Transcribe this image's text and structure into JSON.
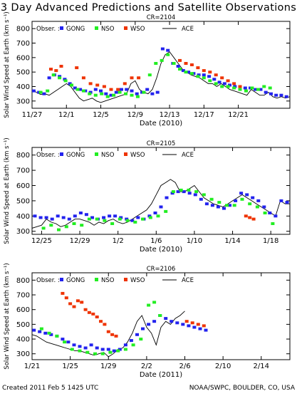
{
  "title": "3 Day Advanced Predictions and Satellite Observations",
  "footer": {
    "left": "Created 2011 Feb 5 1425 UTC",
    "right": "NOAA/SWPC, BOULDER, CO, USA"
  },
  "colors": {
    "GONG": "#2222ee",
    "NSO": "#22ee22",
    "WSO": "#ee3300",
    "ACE": "#000000"
  },
  "chart_data": [
    {
      "type": "line",
      "title": "CR=2104",
      "xlabel": "Date (2010)",
      "ylabel": "Solar Wind Speed at Earth (km s⁻¹)",
      "ylim": [
        250,
        850
      ],
      "yticks": [
        300,
        400,
        500,
        600,
        700,
        800
      ],
      "xlim": [
        0,
        30
      ],
      "xticks": [
        0,
        4,
        8,
        12,
        16,
        20,
        24
      ],
      "xticklabels": [
        "11/27",
        "12/1",
        "12/5",
        "12/9",
        "12/13",
        "12/17",
        "12/21"
      ],
      "legend": {
        "prefix": "Obser. :",
        "labels": {
          "GONG": "GONG",
          "NSO": "NSO",
          "WSO": "WSO",
          "ACE": "ACE"
        }
      },
      "series": [
        {
          "name": "ACE",
          "x": [
            0,
            0.5,
            1,
            1.5,
            2,
            2.5,
            3,
            3.5,
            4,
            4.5,
            5,
            5.5,
            6,
            6.5,
            7,
            7.5,
            8,
            8.5,
            9,
            9.5,
            10,
            10.5,
            11,
            11.5,
            12,
            12.5,
            13,
            13.5,
            14,
            14.5,
            15,
            15.5,
            16,
            16.5,
            17,
            17.5,
            18,
            18.5,
            19,
            19.5,
            20,
            20.5,
            21,
            21.5,
            22,
            22.5,
            23,
            23.5,
            24,
            24.5,
            25,
            25.5,
            26,
            26.5,
            27,
            27.5,
            28,
            28.5,
            29,
            29.5,
            30
          ],
          "y": [
            380,
            360,
            345,
            350,
            340,
            360,
            380,
            400,
            420,
            400,
            360,
            320,
            300,
            310,
            320,
            300,
            290,
            300,
            310,
            320,
            330,
            340,
            350,
            420,
            440,
            380,
            360,
            350,
            380,
            460,
            560,
            620,
            640,
            600,
            560,
            520,
            500,
            480,
            470,
            460,
            440,
            420,
            420,
            400,
            420,
            400,
            380,
            370,
            360,
            350,
            340,
            380,
            360,
            340,
            340,
            360,
            330,
            320,
            330,
            320,
            330
          ]
        },
        {
          "name": "GONG",
          "x": [
            0.2,
            0.8,
            1.4,
            2.0,
            2.6,
            3.2,
            3.8,
            4.4,
            5.0,
            5.6,
            6.2,
            6.8,
            7.4,
            8.0,
            8.6,
            9.2,
            9.8,
            10.4,
            11.0,
            11.6,
            12.2,
            12.8,
            13.4,
            14.0,
            14.6,
            15.2,
            15.8,
            16.4,
            17.0,
            17.6,
            18.2,
            18.8,
            19.4,
            20.0,
            20.6,
            21.2,
            21.8,
            22.4,
            23.0,
            23.6,
            24.2,
            24.8,
            25.4,
            26.0,
            26.6,
            27.2,
            27.8,
            28.4,
            29.0,
            29.6
          ],
          "y": [
            370,
            360,
            350,
            460,
            480,
            470,
            450,
            420,
            390,
            380,
            370,
            360,
            380,
            370,
            350,
            340,
            360,
            380,
            380,
            370,
            350,
            360,
            380,
            350,
            360,
            660,
            650,
            560,
            540,
            510,
            500,
            490,
            480,
            480,
            470,
            450,
            430,
            420,
            410,
            400,
            400,
            390,
            390,
            380,
            380,
            360,
            350,
            340,
            340,
            330
          ]
        },
        {
          "name": "NSO",
          "x": [
            1.0,
            1.8,
            2.5,
            3.2,
            3.9,
            4.6,
            5.3,
            6.0,
            6.7,
            7.4,
            8.1,
            8.8,
            9.5,
            10.2,
            10.9,
            11.6,
            12.3,
            13.0,
            13.7,
            14.4,
            15.1,
            15.8,
            16.5,
            17.2,
            17.9,
            18.6,
            19.3,
            20.0,
            20.7,
            21.4,
            22.1,
            22.8,
            23.5,
            24.2,
            24.9,
            25.6,
            26.3,
            27.0,
            27.7
          ],
          "y": [
            360,
            370,
            480,
            460,
            440,
            410,
            380,
            370,
            350,
            340,
            350,
            330,
            340,
            360,
            350,
            340,
            330,
            360,
            480,
            560,
            580,
            620,
            560,
            520,
            500,
            490,
            470,
            460,
            440,
            420,
            400,
            400,
            390,
            380,
            370,
            390,
            380,
            400,
            390
          ]
        },
        {
          "name": "WSO",
          "x": [
            2.2,
            2.8,
            3.4,
            5.2,
            6.0,
            6.8,
            7.6,
            8.4,
            9.2,
            10.0,
            10.8,
            11.6,
            12.4,
            17.2,
            17.9,
            18.6,
            19.3,
            20.0,
            20.7,
            21.4,
            22.1,
            22.8,
            23.5,
            24.2
          ],
          "y": [
            520,
            510,
            540,
            530,
            460,
            420,
            410,
            400,
            380,
            380,
            420,
            460,
            460,
            580,
            560,
            550,
            530,
            510,
            500,
            480,
            460,
            440,
            420,
            400
          ]
        }
      ]
    },
    {
      "type": "line",
      "title": "CR=2105",
      "xlabel": "Date (2010)",
      "ylabel": "Solar Wind Speed at Earth (km s⁻¹)",
      "ylim": [
        280,
        850
      ],
      "yticks": [
        300,
        400,
        500,
        600,
        700,
        800
      ],
      "xlim": [
        0,
        27
      ],
      "xticks": [
        1,
        5,
        9,
        13,
        17,
        21,
        25
      ],
      "xticklabels": [
        "12/25",
        "12/29",
        "1/2",
        "1/6",
        "1/10",
        "1/14",
        "1/18"
      ],
      "legend": {
        "prefix": "Obser. :",
        "labels": {
          "GONG": "GONG",
          "NSO": "NSO",
          "WSO": "WSO",
          "ACE": "ACE"
        }
      },
      "series": [
        {
          "name": "ACE",
          "x": [
            0,
            0.5,
            1,
            1.5,
            2,
            2.5,
            3,
            3.5,
            4,
            4.5,
            5,
            5.5,
            6,
            6.5,
            7,
            7.5,
            8,
            8.5,
            9,
            9.5,
            10,
            10.5,
            11,
            11.5,
            12,
            12.5,
            13,
            13.5,
            14,
            14.5,
            15,
            15.5,
            16,
            16.5,
            17,
            17.5,
            18,
            18.5,
            19,
            19.5,
            20,
            20.5,
            21,
            21.5,
            22,
            22.5,
            23,
            23.5,
            24,
            24.5,
            25,
            25.5,
            26,
            26.5,
            27
          ],
          "y": [
            320,
            330,
            340,
            380,
            360,
            350,
            330,
            340,
            360,
            380,
            380,
            370,
            360,
            340,
            360,
            350,
            370,
            380,
            360,
            350,
            360,
            380,
            400,
            420,
            440,
            480,
            540,
            600,
            620,
            640,
            620,
            560,
            560,
            580,
            600,
            560,
            520,
            500,
            480,
            470,
            460,
            480,
            500,
            520,
            540,
            520,
            500,
            480,
            460,
            440,
            420,
            400,
            500,
            480,
            480
          ]
        },
        {
          "name": "GONG",
          "x": [
            0.3,
            0.9,
            1.5,
            2.1,
            2.7,
            3.3,
            3.9,
            4.5,
            5.1,
            5.7,
            6.3,
            6.9,
            7.5,
            8.1,
            8.7,
            9.3,
            9.9,
            10.5,
            11.1,
            11.7,
            12.3,
            12.9,
            13.5,
            14.1,
            14.7,
            15.3,
            15.9,
            16.5,
            17.1,
            17.7,
            18.3,
            18.9,
            19.5,
            20.1,
            20.7,
            21.3,
            21.9,
            22.5,
            23.1,
            23.7,
            24.3,
            24.9,
            25.5,
            26.1,
            26.7
          ],
          "y": [
            400,
            390,
            390,
            380,
            400,
            390,
            380,
            400,
            420,
            410,
            390,
            380,
            390,
            400,
            400,
            390,
            380,
            370,
            390,
            380,
            400,
            420,
            460,
            520,
            550,
            560,
            560,
            550,
            540,
            510,
            480,
            470,
            460,
            450,
            470,
            500,
            550,
            540,
            520,
            500,
            460,
            420,
            400,
            500,
            490
          ]
        },
        {
          "name": "NSO",
          "x": [
            1.2,
            2.0,
            2.8,
            3.6,
            4.4,
            5.2,
            6.0,
            6.8,
            7.6,
            8.4,
            9.2,
            10.0,
            10.8,
            11.6,
            12.4,
            13.2,
            14.0,
            14.8,
            15.6,
            16.4,
            17.2,
            18.0,
            18.8,
            19.6,
            20.4,
            21.2,
            22.0,
            22.8,
            23.6,
            24.4,
            25.2
          ],
          "y": [
            320,
            340,
            310,
            330,
            350,
            340,
            380,
            380,
            370,
            350,
            380,
            370,
            360,
            380,
            390,
            400,
            430,
            560,
            570,
            570,
            560,
            540,
            510,
            490,
            470,
            470,
            510,
            480,
            460,
            420,
            350
          ]
        },
        {
          "name": "WSO",
          "x": [
            22.4,
            22.8,
            23.2
          ],
          "y": [
            400,
            390,
            380
          ]
        }
      ]
    },
    {
      "type": "line",
      "title": "CR=2106",
      "xlabel": "Date (2011)",
      "ylabel": "Solar Wind Speed at Earth (km s⁻¹)",
      "ylim": [
        260,
        850
      ],
      "yticks": [
        300,
        400,
        500,
        600,
        700,
        800
      ],
      "xlim": [
        0,
        27
      ],
      "xticks": [
        0,
        4,
        8,
        12,
        16,
        20,
        24
      ],
      "xticklabels": [
        "1/21",
        "1/25",
        "1/29",
        "2/2",
        "2/6",
        "2/10",
        "2/14"
      ],
      "legend": {
        "prefix": "Obser. :",
        "labels": {
          "GONG": "GONG",
          "NSO": "NSO",
          "WSO": "WSO",
          "ACE": "ACE"
        }
      },
      "series": [
        {
          "name": "ACE",
          "x": [
            0,
            0.5,
            1,
            1.5,
            2,
            2.5,
            3,
            3.5,
            4,
            4.5,
            5,
            5.5,
            6,
            6.5,
            7,
            7.5,
            8,
            8.5,
            9,
            9.5,
            10,
            10.5,
            11,
            11.5,
            12,
            12.5,
            13,
            13.5,
            14,
            14.5,
            15,
            15.5,
            16
          ],
          "y": [
            430,
            420,
            400,
            380,
            370,
            360,
            350,
            340,
            330,
            320,
            320,
            310,
            300,
            290,
            300,
            310,
            280,
            300,
            330,
            340,
            380,
            440,
            520,
            560,
            480,
            440,
            360,
            480,
            520,
            500,
            540,
            560,
            590
          ]
        },
        {
          "name": "GONG",
          "x": [
            0.2,
            0.8,
            1.4,
            2.0,
            2.6,
            3.2,
            3.8,
            4.4,
            5.0,
            5.6,
            6.2,
            6.8,
            7.4,
            8.0,
            8.6,
            9.2,
            9.8,
            10.4,
            11.0,
            11.6,
            12.2,
            12.8,
            13.4,
            14.0,
            14.6,
            15.2,
            15.8,
            16.4,
            17.0,
            17.6,
            18.2
          ],
          "y": [
            460,
            450,
            440,
            430,
            420,
            400,
            380,
            360,
            350,
            340,
            360,
            340,
            330,
            330,
            320,
            330,
            360,
            390,
            430,
            470,
            500,
            520,
            560,
            540,
            520,
            510,
            500,
            490,
            480,
            470,
            460
          ]
        },
        {
          "name": "NSO",
          "x": [
            1.0,
            1.8,
            2.6,
            3.4,
            4.2,
            5.0,
            5.8,
            6.6,
            7.4,
            8.2,
            9.0,
            9.8,
            10.6,
            11.4,
            12.2,
            12.8,
            13.4
          ],
          "y": [
            470,
            440,
            420,
            380,
            330,
            320,
            310,
            300,
            300,
            310,
            320,
            330,
            360,
            400,
            630,
            650,
            560
          ]
        },
        {
          "name": "WSO",
          "x": [
            3.2,
            3.6,
            4.0,
            4.4,
            4.8,
            5.2,
            5.6,
            6.0,
            6.4,
            6.8,
            7.2,
            7.6,
            8.0,
            8.4,
            8.8,
            16.2,
            16.8,
            17.4,
            18.0
          ],
          "y": [
            710,
            680,
            640,
            620,
            660,
            650,
            600,
            580,
            570,
            550,
            520,
            500,
            450,
            430,
            420,
            520,
            510,
            500,
            490
          ]
        }
      ]
    }
  ]
}
